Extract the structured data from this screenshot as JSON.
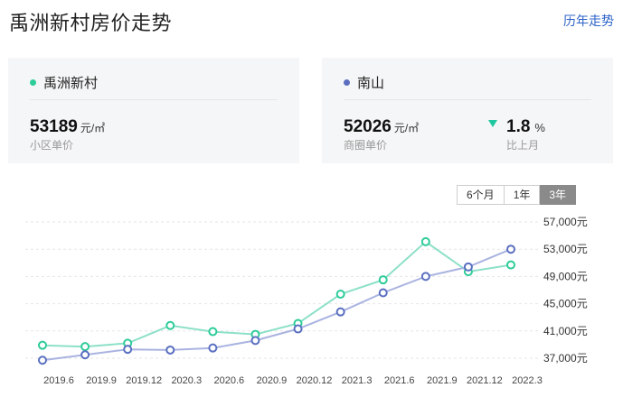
{
  "header": {
    "title": "禹洲新村房价走势",
    "history_link": "历年走势"
  },
  "cards": {
    "community": {
      "name": "禹洲新村",
      "price": "53189",
      "unit": "元/㎡",
      "label": "小区单价",
      "color": "#2ecc9a"
    },
    "district": {
      "name": "南山",
      "price": "52026",
      "unit": "元/㎡",
      "label": "商圈单价",
      "color": "#5a6fc0",
      "change_value": "1.8",
      "change_unit": "%",
      "change_label": "比上月",
      "change_direction": "down"
    }
  },
  "range_tabs": [
    {
      "label": "6个月",
      "active": false
    },
    {
      "label": "1年",
      "active": false
    },
    {
      "label": "3年",
      "active": true
    }
  ],
  "chart_data": {
    "type": "line",
    "x": [
      "2019.6",
      "2019.9",
      "2019.12",
      "2020.3",
      "2020.6",
      "2020.9",
      "2020.12",
      "2021.3",
      "2021.6",
      "2021.9",
      "2021.12",
      "2022.3"
    ],
    "x_tick_labels": [
      "2019.6",
      "2019.9",
      "2019.12",
      "2020.3",
      "2020.6",
      "2020.9",
      "2020.12",
      "2021.3",
      "2021.6",
      "2021.9",
      "2021.12",
      "2022.3"
    ],
    "y_tick_labels": [
      "57,000元",
      "53,000元",
      "49,000元",
      "45,000元",
      "41,000元",
      "37,000元"
    ],
    "yticks": [
      57000,
      53000,
      49000,
      45000,
      41000,
      37000
    ],
    "ylim": [
      36000,
      58000
    ],
    "grid": true,
    "series": [
      {
        "name": "禹洲新村",
        "color": "#2ecc9a",
        "line_color": "#8de0c8",
        "points": [
          [
            0,
            38900
          ],
          [
            1,
            38700
          ],
          [
            2,
            39200
          ],
          [
            3,
            41800
          ],
          [
            4,
            40900
          ],
          [
            5,
            40500
          ],
          [
            6,
            42100
          ],
          [
            7,
            46400
          ],
          [
            8,
            48500
          ],
          [
            9,
            54100
          ],
          [
            10,
            49700
          ],
          [
            11,
            50700
          ]
        ]
      },
      {
        "name": "南山",
        "color": "#5a6fc0",
        "line_color": "#a9b3e0",
        "points": [
          [
            0,
            36700
          ],
          [
            1,
            37500
          ],
          [
            2,
            38300
          ],
          [
            3,
            38200
          ],
          [
            4,
            38500
          ],
          [
            5,
            39600
          ],
          [
            6,
            41300
          ],
          [
            7,
            43800
          ],
          [
            8,
            46600
          ],
          [
            9,
            49000
          ],
          [
            10,
            50400
          ],
          [
            11,
            53000
          ]
        ]
      }
    ]
  }
}
